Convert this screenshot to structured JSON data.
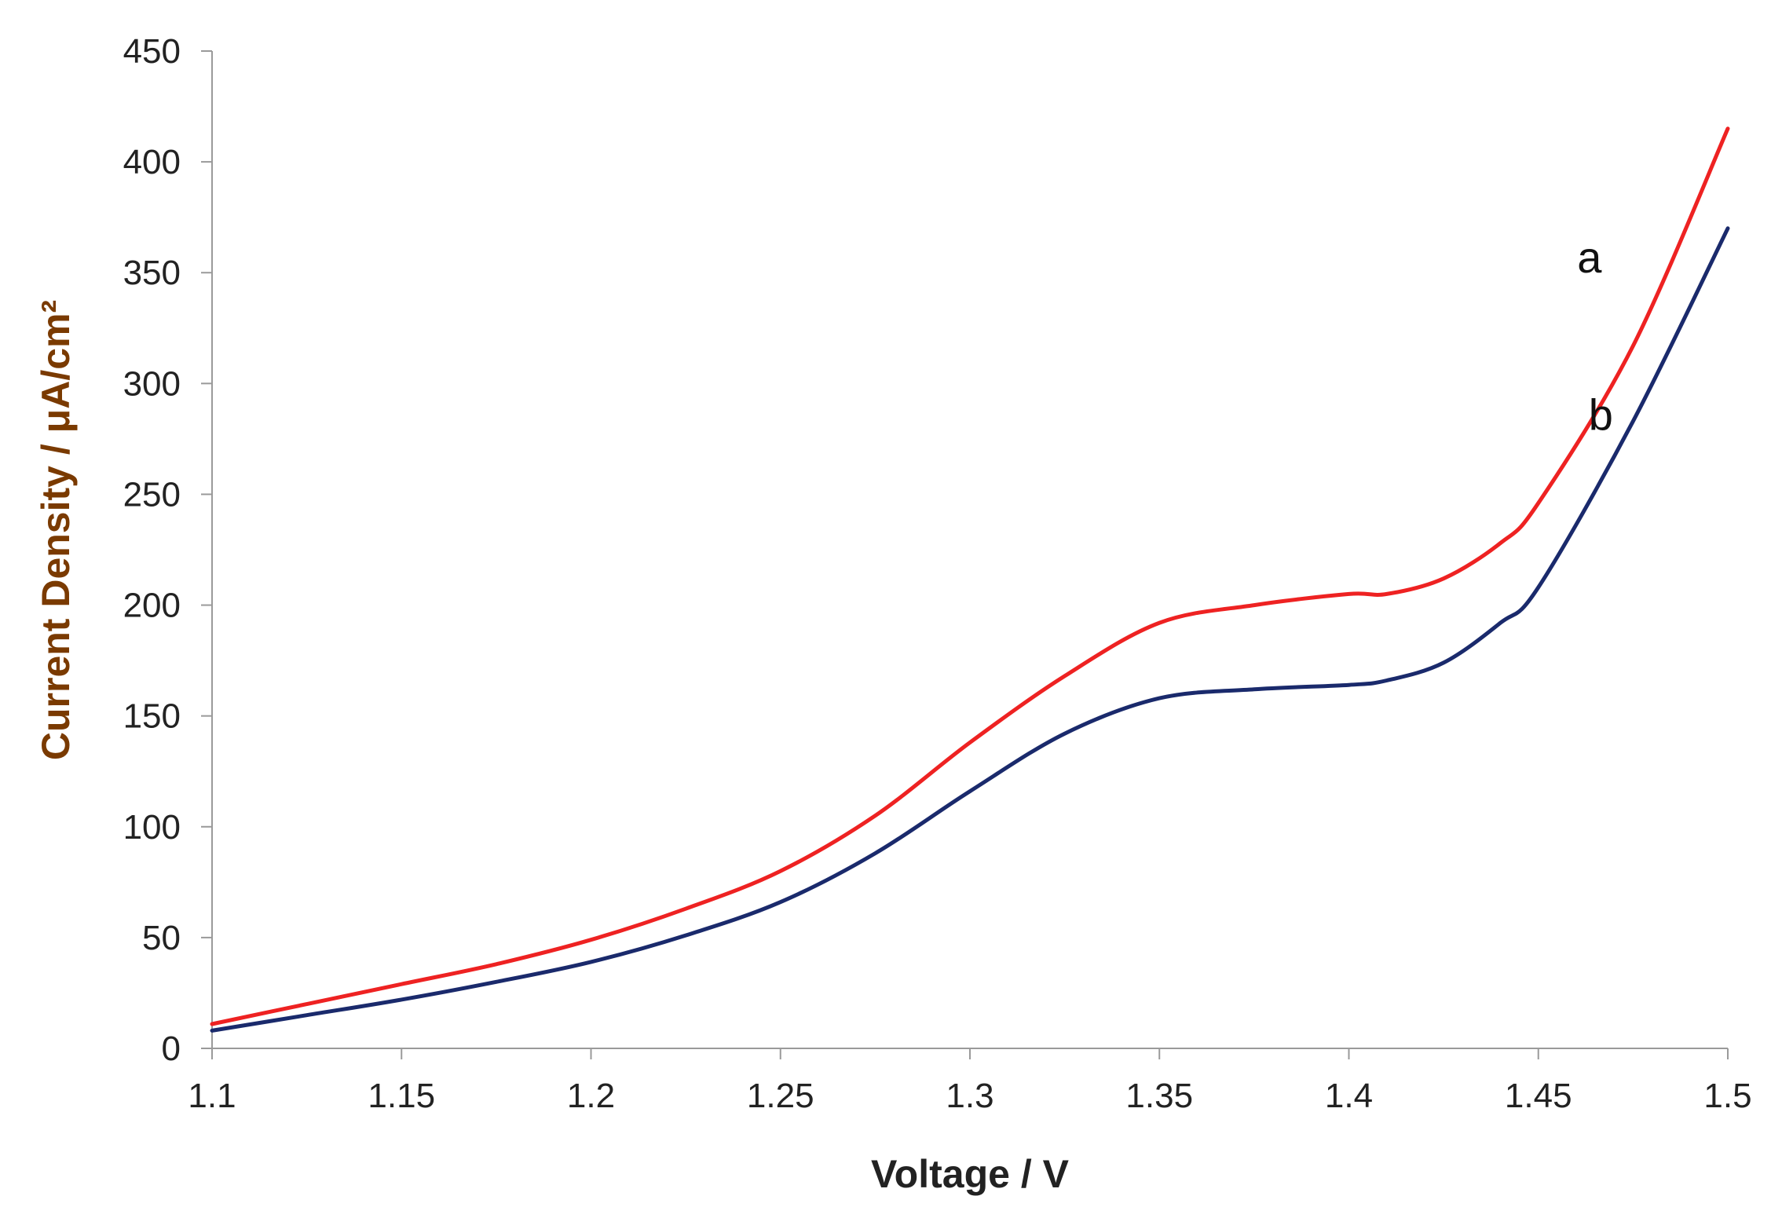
{
  "chart_data": {
    "type": "line",
    "xlabel": "Voltage  / V",
    "ylabel": "Current Density  / μA/cm²",
    "xlim": [
      1.1,
      1.5
    ],
    "ylim": [
      0,
      450
    ],
    "x_ticks": [
      "1.1",
      "1.15",
      "1.2",
      "1.25",
      "1.3",
      "1.35",
      "1.4",
      "1.45",
      "1.5"
    ],
    "y_ticks": [
      "0",
      "50",
      "100",
      "150",
      "200",
      "250",
      "300",
      "350",
      "400",
      "450"
    ],
    "grid": false,
    "x": [
      1.1,
      1.125,
      1.15,
      1.175,
      1.2,
      1.225,
      1.25,
      1.275,
      1.3,
      1.325,
      1.35,
      1.375,
      1.4,
      1.41,
      1.425,
      1.44,
      1.45,
      1.475,
      1.5
    ],
    "series": [
      {
        "name": "a",
        "color": "#ee2222",
        "values": [
          11,
          20,
          29,
          38,
          49,
          63,
          80,
          105,
          138,
          168,
          192,
          200,
          205,
          205,
          212,
          228,
          246,
          317,
          415
        ]
      },
      {
        "name": "b",
        "color": "#1a2a6c",
        "values": [
          8,
          15,
          22,
          30,
          39,
          51,
          66,
          88,
          116,
          142,
          158,
          162,
          164,
          166,
          174,
          192,
          208,
          283,
          370
        ]
      }
    ]
  }
}
